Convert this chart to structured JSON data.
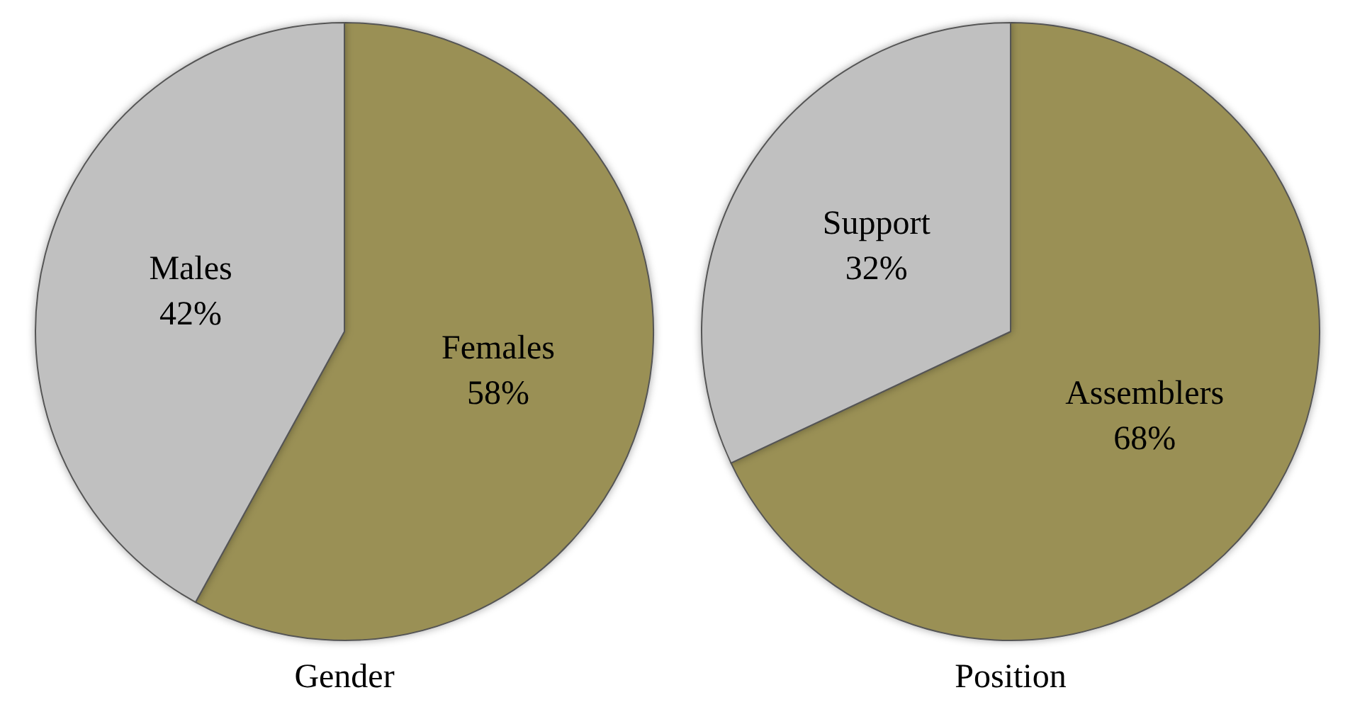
{
  "chart_data": [
    {
      "type": "pie",
      "title": "Gender",
      "categories": [
        "Females",
        "Males"
      ],
      "values": [
        58,
        42
      ],
      "value_labels": [
        "58%",
        "42%"
      ],
      "colors": [
        "#9a9055",
        "#c0c0c0"
      ],
      "legend": false
    },
    {
      "type": "pie",
      "title": "Position",
      "categories": [
        "Assemblers",
        "Support"
      ],
      "values": [
        68,
        32
      ],
      "value_labels": [
        "68%",
        "32%"
      ],
      "colors": [
        "#9a9055",
        "#c0c0c0"
      ],
      "legend": false
    }
  ]
}
